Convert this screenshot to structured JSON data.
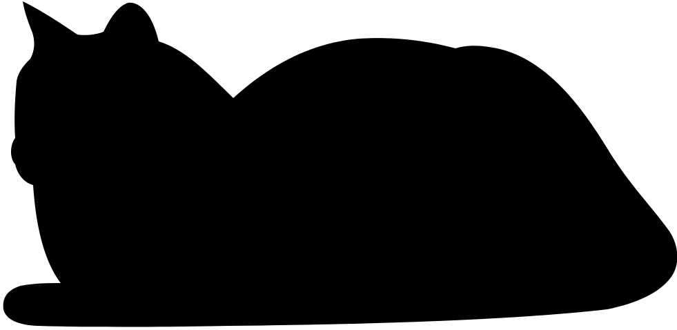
{
  "image": {
    "subject": "cat-silhouette",
    "fill_color": "#000000",
    "background_color": "#ffffff"
  }
}
